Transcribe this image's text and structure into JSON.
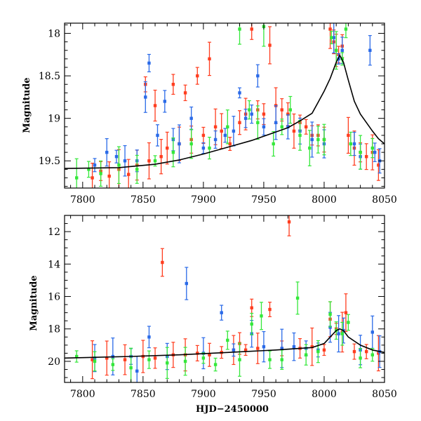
{
  "chart_data": [
    {
      "type": "scatter",
      "panel": "top",
      "title": "",
      "xlabel": "",
      "ylabel": "Magnitude",
      "xlim": [
        7785,
        8050
      ],
      "ylim": [
        19.82,
        17.88
      ],
      "y_inverted": true,
      "xticks": [
        7800,
        7850,
        7900,
        7950,
        8000,
        8050
      ],
      "yticks": [
        18,
        18.5,
        19,
        19.5
      ],
      "ytick_labels": [
        "18",
        "18.5",
        "19",
        "19.5"
      ],
      "grid": false,
      "legend": "none",
      "series": [
        {
          "color": "#ff3d1f",
          "points": [
            [
              7808,
              19.7
            ],
            [
              7815,
              19.62
            ],
            [
              7822,
              19.68
            ],
            [
              7830,
              19.6
            ],
            [
              7838,
              19.66
            ],
            [
              7845,
              19.55
            ],
            [
              7852,
              18.6
            ],
            [
              7855,
              19.5
            ],
            [
              7860,
              18.85
            ],
            [
              7865,
              19.45
            ],
            [
              7870,
              19.35
            ],
            [
              7875,
              18.6
            ],
            [
              7880,
              19.3
            ],
            [
              7885,
              18.7
            ],
            [
              7890,
              19.25
            ],
            [
              7895,
              18.5
            ],
            [
              7900,
              19.2
            ],
            [
              7905,
              18.3
            ],
            [
              7910,
              19.1
            ],
            [
              7915,
              19.15
            ],
            [
              7922,
              19.3
            ],
            [
              7930,
              19.05
            ],
            [
              7935,
              18.95
            ],
            [
              7940,
              17.95
            ],
            [
              7945,
              18.9
            ],
            [
              7950,
              18.95
            ],
            [
              7955,
              18.14
            ],
            [
              7960,
              18.85
            ],
            [
              7965,
              18.9
            ],
            [
              7970,
              18.95
            ],
            [
              7975,
              19.15
            ],
            [
              7980,
              19.05
            ],
            [
              7985,
              19.1
            ],
            [
              7990,
              19.2
            ],
            [
              7995,
              19.2
            ],
            [
              8000,
              19.25
            ],
            [
              8005,
              17.95
            ],
            [
              8008,
              18.1
            ],
            [
              8010,
              18.2
            ],
            [
              8012,
              18.25
            ],
            [
              8015,
              18.15
            ],
            [
              8020,
              19.2
            ],
            [
              8025,
              19.35
            ],
            [
              8030,
              19.4
            ],
            [
              8035,
              19.45
            ],
            [
              8040,
              19.4
            ],
            [
              8045,
              19.55
            ]
          ]
        },
        {
          "color": "#2a6ae8",
          "points": [
            [
              7810,
              19.55
            ],
            [
              7820,
              19.4
            ],
            [
              7828,
              19.45
            ],
            [
              7835,
              19.5
            ],
            [
              7845,
              19.5
            ],
            [
              7852,
              18.75
            ],
            [
              7855,
              18.35
            ],
            [
              7862,
              19.2
            ],
            [
              7868,
              18.8
            ],
            [
              7875,
              19.25
            ],
            [
              7880,
              19.3
            ],
            [
              7890,
              19.0
            ],
            [
              7900,
              19.35
            ],
            [
              7910,
              19.25
            ],
            [
              7918,
              19.2
            ],
            [
              7925,
              19.15
            ],
            [
              7930,
              18.7
            ],
            [
              7935,
              19.0
            ],
            [
              7940,
              18.95
            ],
            [
              7945,
              18.5
            ],
            [
              7950,
              19.1
            ],
            [
              7960,
              19.05
            ],
            [
              7970,
              19.1
            ],
            [
              7980,
              19.15
            ],
            [
              7990,
              19.25
            ],
            [
              8000,
              19.3
            ],
            [
              8008,
              18.05
            ],
            [
              8012,
              18.3
            ],
            [
              8015,
              18.2
            ],
            [
              8025,
              19.3
            ],
            [
              8030,
              19.45
            ],
            [
              8038,
              18.2
            ],
            [
              8042,
              19.4
            ],
            [
              8046,
              19.5
            ]
          ]
        },
        {
          "color": "#34e83a",
          "points": [
            [
              7795,
              19.7
            ],
            [
              7805,
              19.6
            ],
            [
              7815,
              19.65
            ],
            [
              7830,
              19.55
            ],
            [
              7845,
              19.6
            ],
            [
              7860,
              19.5
            ],
            [
              7875,
              19.4
            ],
            [
              7890,
              19.3
            ],
            [
              7905,
              19.35
            ],
            [
              7920,
              19.1
            ],
            [
              7930,
              17.95
            ],
            [
              7938,
              18.9
            ],
            [
              7945,
              19.05
            ],
            [
              7950,
              17.92
            ],
            [
              7958,
              19.3
            ],
            [
              7965,
              19.1
            ],
            [
              7972,
              18.9
            ],
            [
              7980,
              19.2
            ],
            [
              7988,
              19.35
            ],
            [
              7995,
              19.25
            ],
            [
              8000,
              19.25
            ],
            [
              8006,
              18.05
            ],
            [
              8010,
              18.2
            ],
            [
              8015,
              18.3
            ],
            [
              8018,
              17.95
            ],
            [
              8022,
              19.3
            ],
            [
              8030,
              19.4
            ],
            [
              8040,
              19.35
            ]
          ]
        },
        {
          "color": "#000000",
          "type": "line",
          "points": [
            [
              7785,
              19.59
            ],
            [
              7830,
              19.58
            ],
            [
              7860,
              19.54
            ],
            [
              7880,
              19.49
            ],
            [
              7900,
              19.42
            ],
            [
              7920,
              19.34
            ],
            [
              7940,
              19.26
            ],
            [
              7960,
              19.16
            ],
            [
              7970,
              19.11
            ],
            [
              7980,
              19.03
            ],
            [
              7990,
              18.94
            ],
            [
              7995,
              18.81
            ],
            [
              8000,
              18.68
            ],
            [
              8005,
              18.53
            ],
            [
              8010,
              18.34
            ],
            [
              8013,
              18.26
            ],
            [
              8016,
              18.34
            ],
            [
              8020,
              18.55
            ],
            [
              8025,
              18.8
            ],
            [
              8030,
              18.95
            ],
            [
              8035,
              19.05
            ],
            [
              8040,
              19.15
            ],
            [
              8045,
              19.24
            ],
            [
              8050,
              19.3
            ]
          ]
        }
      ]
    },
    {
      "type": "scatter",
      "panel": "bottom",
      "title": "",
      "xlabel": "HJD−2450000",
      "ylabel": "Magnitude",
      "xlim": [
        7785,
        8050
      ],
      "ylim": [
        21.3,
        11.0
      ],
      "y_inverted": true,
      "xticks": [
        7800,
        7850,
        7900,
        7950,
        8000,
        8050
      ],
      "yticks": [
        12,
        14,
        16,
        18,
        20
      ],
      "ytick_labels": [
        "12",
        "14",
        "16",
        "18",
        "20"
      ],
      "grid": false,
      "legend": "none",
      "series": [
        {
          "color": "#ff3d1f",
          "points": [
            [
              7808,
              19.9
            ],
            [
              7820,
              19.8
            ],
            [
              7835,
              19.9
            ],
            [
              7850,
              19.7
            ],
            [
              7860,
              19.8
            ],
            [
              7866,
              13.9
            ],
            [
              7875,
              19.6
            ],
            [
              7885,
              19.6
            ],
            [
              7895,
              19.5
            ],
            [
              7905,
              19.6
            ],
            [
              7915,
              19.45
            ],
            [
              7925,
              19.3
            ],
            [
              7930,
              18.9
            ],
            [
              7935,
              19.3
            ],
            [
              7940,
              16.7
            ],
            [
              7945,
              19.2
            ],
            [
              7955,
              16.8
            ],
            [
              7965,
              19.2
            ],
            [
              7971,
              11.4
            ],
            [
              7980,
              19.2
            ],
            [
              7990,
              19.1
            ],
            [
              8000,
              19.3
            ],
            [
              8005,
              17.4
            ],
            [
              8010,
              18.0
            ],
            [
              8015,
              18.2
            ],
            [
              8018,
              17.0
            ],
            [
              8025,
              19.4
            ],
            [
              8035,
              19.4
            ],
            [
              8045,
              19.5
            ]
          ]
        },
        {
          "color": "#2a6ae8",
          "points": [
            [
              7810,
              19.8
            ],
            [
              7825,
              19.7
            ],
            [
              7840,
              19.7
            ],
            [
              7845,
              20.6
            ],
            [
              7855,
              18.5
            ],
            [
              7870,
              19.7
            ],
            [
              7886,
              15.2
            ],
            [
              7900,
              19.5
            ],
            [
              7915,
              17.0
            ],
            [
              7925,
              19.3
            ],
            [
              7940,
              18.3
            ],
            [
              7950,
              19.1
            ],
            [
              7965,
              19.2
            ],
            [
              7975,
              19.1
            ],
            [
              7985,
              19.2
            ],
            [
              7995,
              19.3
            ],
            [
              8005,
              17.9
            ],
            [
              8012,
              18.3
            ],
            [
              8016,
              18.1
            ],
            [
              8030,
              19.3
            ],
            [
              8040,
              18.2
            ],
            [
              8046,
              19.4
            ]
          ]
        },
        {
          "color": "#34e83a",
          "points": [
            [
              7795,
              19.7
            ],
            [
              7810,
              20.0
            ],
            [
              7825,
              20.2
            ],
            [
              7840,
              20.4
            ],
            [
              7855,
              19.9
            ],
            [
              7870,
              20.1
            ],
            [
              7885,
              20.0
            ],
            [
              7900,
              19.8
            ],
            [
              7910,
              20.2
            ],
            [
              7920,
              18.7
            ],
            [
              7930,
              19.9
            ],
            [
              7940,
              17.7
            ],
            [
              7948,
              17.2
            ],
            [
              7955,
              19.9
            ],
            [
              7965,
              19.9
            ],
            [
              7978,
              16.1
            ],
            [
              7985,
              19.6
            ],
            [
              7995,
              19.4
            ],
            [
              8005,
              17.1
            ],
            [
              8010,
              18.1
            ],
            [
              8015,
              18.3
            ],
            [
              8020,
              17.6
            ],
            [
              8030,
              19.8
            ],
            [
              8040,
              19.6
            ]
          ]
        },
        {
          "color": "#000000",
          "type": "line",
          "points": [
            [
              7785,
              19.8
            ],
            [
              7840,
              19.7
            ],
            [
              7880,
              19.6
            ],
            [
              7920,
              19.45
            ],
            [
              7960,
              19.3
            ],
            [
              7990,
              19.15
            ],
            [
              8000,
              18.9
            ],
            [
              8005,
              18.5
            ],
            [
              8010,
              18.1
            ],
            [
              8013,
              18.0
            ],
            [
              8016,
              18.1
            ],
            [
              8020,
              18.5
            ],
            [
              8030,
              19.0
            ],
            [
              8040,
              19.3
            ],
            [
              8050,
              19.45
            ]
          ]
        }
      ]
    }
  ]
}
